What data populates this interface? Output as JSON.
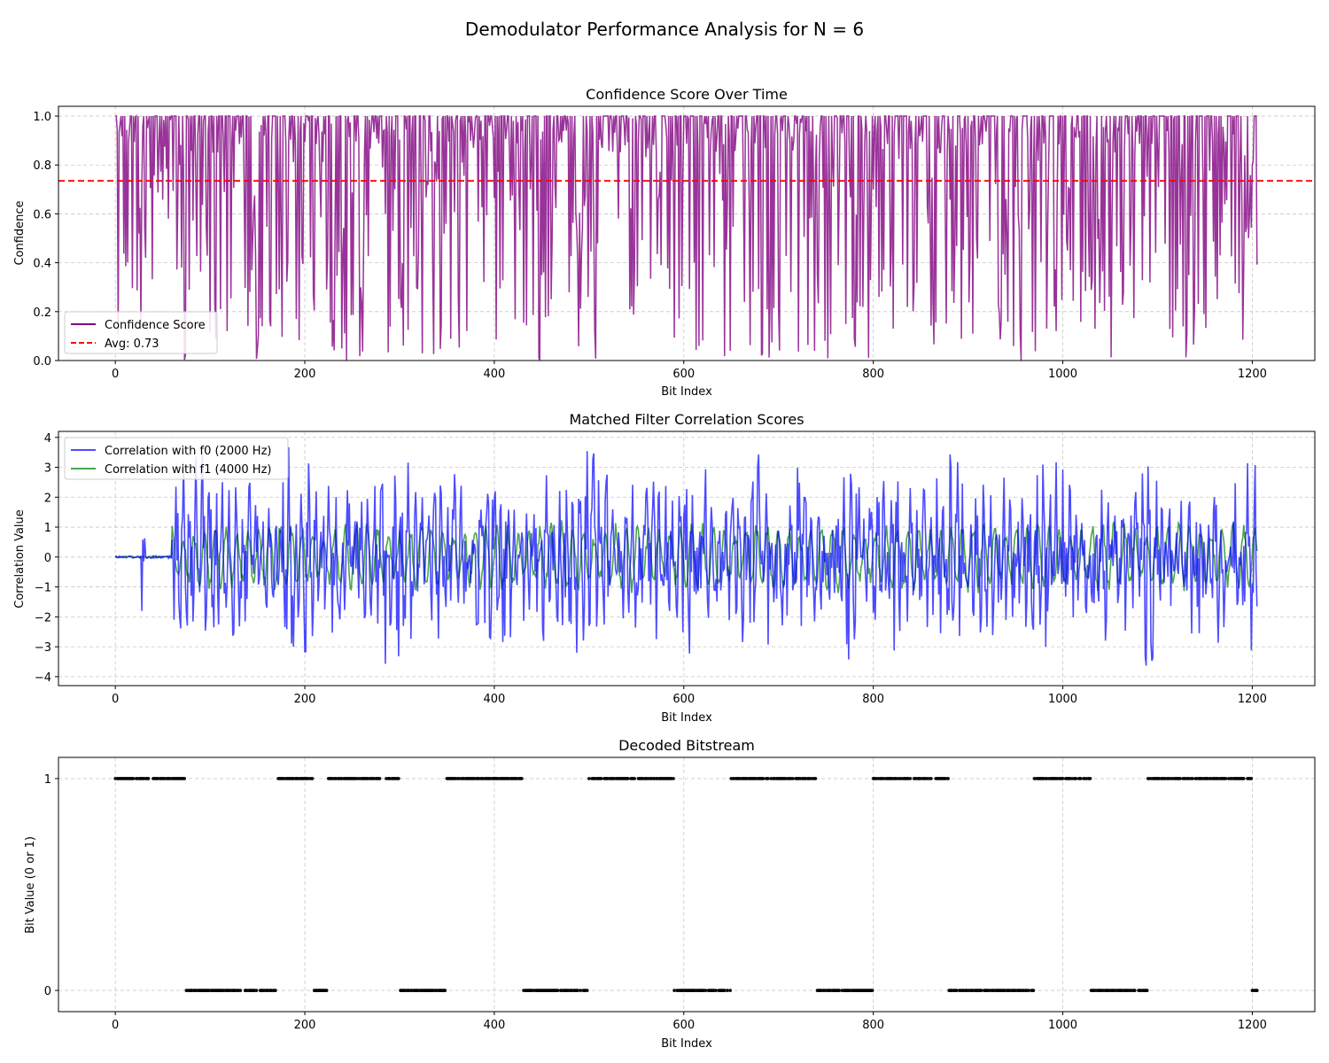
{
  "figure_title": "Demodulator Performance Analysis for N = 6",
  "colors": {
    "confidence": "#800080",
    "average": "#ff0000",
    "f0": "#0000ff",
    "f1": "#008000",
    "bits": "#000000"
  },
  "chart_data": [
    {
      "type": "line",
      "title": "Confidence Score Over Time",
      "xlabel": "Bit Index",
      "ylabel": "Confidence",
      "xlim": [
        -60,
        1266
      ],
      "ylim": [
        0.0,
        1.04
      ],
      "xticks": [
        "0",
        "200",
        "400",
        "600",
        "800",
        "1000",
        "1200"
      ],
      "yticks": [
        "0.0",
        "0.2",
        "0.4",
        "0.6",
        "0.8",
        "1.0"
      ],
      "grid": true,
      "legend_position": "lower-left",
      "series": [
        {
          "name": "Confidence Score",
          "samples": 1206,
          "x_range": [
            0,
            1205
          ],
          "y_range": [
            0.0,
            1.0
          ],
          "note_values": "high-frequency fluctuating confidence between 0 and 1, frequently saturating at 1.0"
        },
        {
          "name": "Avg: 0.73",
          "constant": 0.735
        }
      ]
    },
    {
      "type": "line",
      "title": "Matched Filter Correlation Scores",
      "xlabel": "Bit Index",
      "ylabel": "Correlation Value",
      "xlim": [
        -60,
        1266
      ],
      "ylim": [
        -4.3,
        4.2
      ],
      "xticks": [
        "0",
        "200",
        "400",
        "600",
        "800",
        "1000",
        "1200"
      ],
      "yticks": [
        "−4",
        "−3",
        "−2",
        "−1",
        "0",
        "1",
        "2",
        "3",
        "4"
      ],
      "grid": true,
      "legend_position": "top-left",
      "series": [
        {
          "name": "Correlation with f0 (2000 Hz)",
          "samples": 1206,
          "x_range": [
            0,
            1205
          ],
          "y_range": [
            -4.0,
            3.8
          ],
          "flat_until": 60
        },
        {
          "name": "Correlation with f1 (4000 Hz)",
          "samples": 1206,
          "x_range": [
            0,
            1205
          ],
          "y_range": [
            -1.8,
            1.7
          ],
          "flat_until": 60
        }
      ]
    },
    {
      "type": "scatter",
      "title": "Decoded Bitstream",
      "xlabel": "Bit Index",
      "ylabel": "Bit Value (0 or 1)",
      "xlim": [
        -60,
        1266
      ],
      "ylim": [
        -0.1,
        1.1
      ],
      "xticks": [
        "0",
        "200",
        "400",
        "600",
        "800",
        "1000",
        "1200"
      ],
      "yticks": [
        "0",
        "1"
      ],
      "grid": true,
      "bits_runs": [
        [
          0,
          1,
          75
        ],
        [
          75,
          0,
          95
        ],
        [
          170,
          1,
          40
        ],
        [
          210,
          0,
          15
        ],
        [
          225,
          1,
          75
        ],
        [
          300,
          0,
          50
        ],
        [
          350,
          1,
          80
        ],
        [
          430,
          0,
          70
        ],
        [
          500,
          1,
          90
        ],
        [
          590,
          0,
          60
        ],
        [
          650,
          1,
          90
        ],
        [
          740,
          0,
          60
        ],
        [
          800,
          1,
          80
        ],
        [
          880,
          0,
          90
        ],
        [
          970,
          1,
          60
        ],
        [
          1030,
          0,
          60
        ],
        [
          1090,
          1,
          110
        ],
        [
          1200,
          0,
          6
        ]
      ]
    }
  ]
}
